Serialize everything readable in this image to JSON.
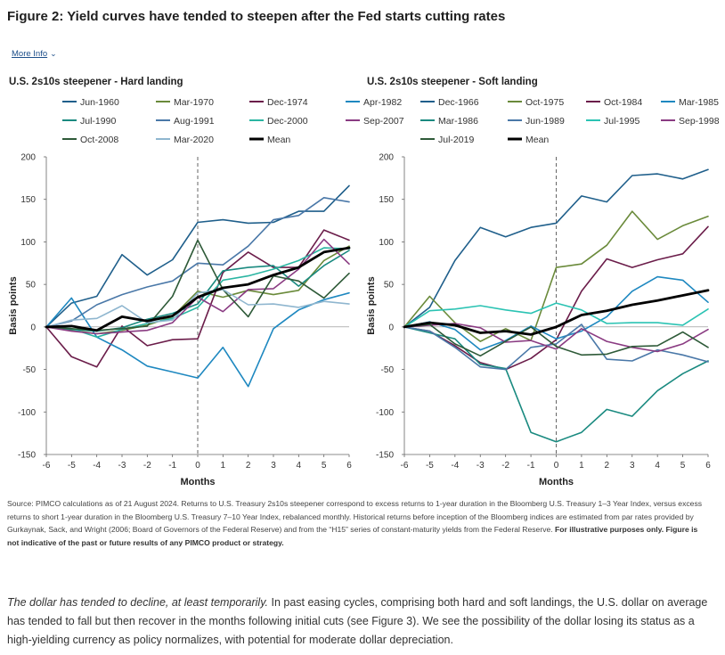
{
  "figure_title": "Figure 2: Yield curves have tended to steepen after the Fed starts cutting rates",
  "more_info_label": "More Info",
  "source_text": "Source: PIMCO calculations as of 21 August 2024. Returns to U.S. Treasury 2s10s steepener correspond to excess returns to 1-year duration in the Bloomberg U.S. Treasury 1–3 Year Index, versus excess returns to short 1-year duration in the Bloomberg U.S. Treasury 7–10 Year Index, rebalanced monthly. Historical returns before inception of the Bloomberg indices are estimated from par rates provided by Gurkaynak, Sack, and Wright (2006; Board of Governors of the Federal Reserve) and from the “H15” series of constant-maturity yields from the Federal Reserve. ",
  "source_bold": "For illustrative purposes only. Figure is not indicative of the past or future results of any PIMCO product or strategy.",
  "para_italic": "The dollar has tended to decline, at least temporarily.",
  "para_text": " In past easing cycles, comprising both hard and soft landings, the U.S. dollar on average has tended to fall but then recover in the months following initial cuts (see Figure 3). We see the possibility of the dollar losing its status as a high-yielding currency as policy normalizes, with potential for moderate dollar depreciation.",
  "chart_data": [
    {
      "type": "line",
      "title": "U.S. 2s10s steepener - Hard landing",
      "xlabel": "Months",
      "ylabel": "Basis points",
      "x": [
        -6,
        -5,
        -4,
        -3,
        -2,
        -1,
        0,
        1,
        2,
        3,
        4,
        5,
        6
      ],
      "xlim": [
        -6,
        6
      ],
      "ylim": [
        -150,
        200
      ],
      "yticks": [
        -150,
        -100,
        -50,
        0,
        50,
        100,
        150,
        200
      ],
      "vline_x": 0,
      "grid": false,
      "legend_position": "top",
      "series": [
        {
          "name": "Jun-1960",
          "color": "#1f5f8b",
          "width": 1.6,
          "values": [
            0,
            28,
            36,
            85,
            61,
            79,
            123,
            126,
            122,
            123,
            136,
            136,
            166
          ]
        },
        {
          "name": "Mar-1970",
          "color": "#6a8a3a",
          "width": 1.6,
          "values": [
            0,
            -4,
            -8,
            -4,
            2,
            12,
            42,
            35,
            43,
            38,
            43,
            78,
            95
          ]
        },
        {
          "name": "Dec-1974",
          "color": "#6b1d4a",
          "width": 1.6,
          "values": [
            0,
            -35,
            -47,
            1,
            -22,
            -15,
            -14,
            64,
            88,
            70,
            70,
            114,
            102
          ]
        },
        {
          "name": "Apr-1982",
          "color": "#1e88c0",
          "width": 1.6,
          "values": [
            0,
            34,
            -12,
            -27,
            -46,
            -53,
            -60,
            -24,
            -70,
            -2,
            20,
            32,
            40
          ]
        },
        {
          "name": "Jul-1990",
          "color": "#1a8a80",
          "width": 1.6,
          "values": [
            0,
            -3,
            -5,
            -1,
            9,
            16,
            27,
            66,
            70,
            72,
            48,
            72,
            90
          ]
        },
        {
          "name": "Aug-1991",
          "color": "#4a78a8",
          "width": 1.6,
          "values": [
            0,
            7,
            26,
            38,
            47,
            54,
            75,
            73,
            95,
            126,
            131,
            152,
            147
          ]
        },
        {
          "name": "Dec-2000",
          "color": "#2bb5a2",
          "width": 1.6,
          "values": [
            0,
            -2,
            -12,
            -3,
            4,
            10,
            23,
            55,
            60,
            68,
            78,
            93,
            92
          ]
        },
        {
          "name": "Sep-2007",
          "color": "#8a3b82",
          "width": 1.6,
          "values": [
            0,
            -5,
            -8,
            -6,
            -4,
            5,
            35,
            18,
            44,
            45,
            68,
            103,
            74
          ]
        },
        {
          "name": "Oct-2008",
          "color": "#2e5a38",
          "width": 1.6,
          "values": [
            0,
            -2,
            -4,
            -2,
            1,
            36,
            102,
            44,
            12,
            60,
            54,
            34,
            63
          ]
        },
        {
          "name": "Mar-2020",
          "color": "#8fb6cf",
          "width": 1.6,
          "values": [
            0,
            8,
            10,
            25,
            5,
            8,
            40,
            44,
            26,
            27,
            23,
            30,
            27
          ]
        },
        {
          "name": "Mean",
          "color": "#000000",
          "width": 2.8,
          "values": [
            0,
            1,
            -4,
            12,
            7,
            13,
            35,
            46,
            50,
            61,
            70,
            88,
            93
          ]
        }
      ]
    },
    {
      "type": "line",
      "title": "U.S. 2s10s steepener - Soft landing",
      "xlabel": "Months",
      "ylabel": "Basis points",
      "x": [
        -6,
        -5,
        -4,
        -3,
        -2,
        -1,
        0,
        1,
        2,
        3,
        4,
        5,
        6
      ],
      "xlim": [
        -6,
        6
      ],
      "ylim": [
        -150,
        200
      ],
      "yticks": [
        -150,
        -100,
        -50,
        0,
        50,
        100,
        150,
        200
      ],
      "vline_x": 0,
      "grid": false,
      "legend_position": "top",
      "series": [
        {
          "name": "Dec-1966",
          "color": "#1f5f8b",
          "width": 1.6,
          "values": [
            0,
            23,
            78,
            117,
            106,
            117,
            122,
            154,
            147,
            178,
            180,
            174,
            185
          ]
        },
        {
          "name": "Oct-1975",
          "color": "#6a8a3a",
          "width": 1.6,
          "values": [
            0,
            36,
            5,
            -17,
            -2,
            -16,
            70,
            74,
            96,
            136,
            103,
            119,
            130
          ]
        },
        {
          "name": "Oct-1984",
          "color": "#6b1d4a",
          "width": 1.6,
          "values": [
            0,
            -5,
            -22,
            -42,
            -50,
            -37,
            -15,
            42,
            80,
            70,
            79,
            86,
            118
          ]
        },
        {
          "name": "Mar-1985",
          "color": "#1e88c0",
          "width": 1.6,
          "values": [
            0,
            6,
            -3,
            -27,
            -16,
            1,
            -14,
            -5,
            12,
            42,
            59,
            55,
            29
          ]
        },
        {
          "name": "Mar-1986",
          "color": "#1a8a80",
          "width": 1.6,
          "values": [
            0,
            -7,
            -14,
            -44,
            -49,
            -124,
            -135,
            -124,
            -97,
            -105,
            -75,
            -55,
            -40
          ]
        },
        {
          "name": "Jun-1989",
          "color": "#4a78a8",
          "width": 1.6,
          "values": [
            0,
            -5,
            -24,
            -47,
            -50,
            -24,
            -20,
            3,
            -38,
            -40,
            -27,
            -33,
            -41
          ]
        },
        {
          "name": "Jul-1995",
          "color": "#2bc3b3",
          "width": 1.6,
          "values": [
            0,
            19,
            21,
            25,
            20,
            16,
            28,
            20,
            4,
            5,
            5,
            2,
            21
          ]
        },
        {
          "name": "Sep-1998",
          "color": "#8a3b82",
          "width": 1.6,
          "values": [
            0,
            2,
            4,
            -1,
            -18,
            -16,
            -26,
            -2,
            -17,
            -24,
            -29,
            -20,
            -3
          ]
        },
        {
          "name": "Jul-2019",
          "color": "#2e5a38",
          "width": 1.6,
          "values": [
            0,
            3,
            -20,
            -34,
            -17,
            0,
            -23,
            -33,
            -32,
            -23,
            -22,
            -6,
            -24
          ]
        },
        {
          "name": "Mean",
          "color": "#000000",
          "width": 2.8,
          "values": [
            0,
            5,
            2,
            -7,
            -5,
            -9,
            0,
            14,
            19,
            26,
            31,
            37,
            43
          ]
        }
      ]
    }
  ]
}
